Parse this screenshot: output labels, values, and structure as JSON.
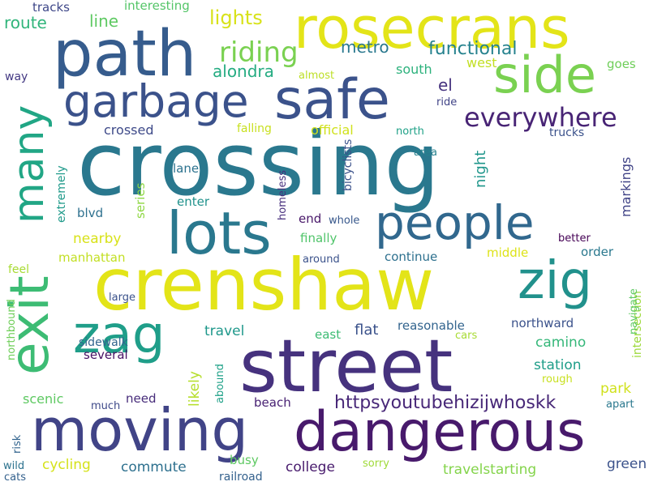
{
  "words": [
    {
      "text": "crossing",
      "color": "#2a788e"
    },
    {
      "text": "street",
      "color": "#46327e"
    },
    {
      "text": "crenshaw",
      "color": "#e3e418"
    },
    {
      "text": "rosecrans",
      "color": "#e3e418"
    },
    {
      "text": "path",
      "color": "#365c8d"
    },
    {
      "text": "safe",
      "color": "#3b528b"
    },
    {
      "text": "side",
      "color": "#7ad151"
    },
    {
      "text": "garbage",
      "color": "#3b528b"
    },
    {
      "text": "moving",
      "color": "#414487"
    },
    {
      "text": "dangerous",
      "color": "#481a6c"
    },
    {
      "text": "lots",
      "color": "#2a788e"
    },
    {
      "text": "people",
      "color": "#31688e"
    },
    {
      "text": "zig",
      "color": "#21918c"
    },
    {
      "text": "zag",
      "color": "#1f9e89"
    },
    {
      "text": "exit",
      "color": "#3dbc74"
    },
    {
      "text": "many",
      "color": "#21a685"
    },
    {
      "text": "everywhere",
      "color": "#482475"
    },
    {
      "text": "riding",
      "color": "#7ad151"
    },
    {
      "text": "httpsyoutubehizijwhoskk",
      "color": "#482878"
    },
    {
      "text": "lights",
      "color": "#d8e219"
    },
    {
      "text": "functional",
      "color": "#26828e"
    },
    {
      "text": "metro",
      "color": "#2a788e"
    },
    {
      "text": "alondra",
      "color": "#25ac82"
    },
    {
      "text": "route",
      "color": "#31b57b"
    },
    {
      "text": "line",
      "color": "#5ec962"
    },
    {
      "text": "tracks",
      "color": "#3f4889"
    },
    {
      "text": "interesting",
      "color": "#54c568"
    },
    {
      "text": "south",
      "color": "#2db27d"
    },
    {
      "text": "west",
      "color": "#c2df23"
    },
    {
      "text": "goes",
      "color": "#6ece58"
    },
    {
      "text": "way",
      "color": "#443983"
    },
    {
      "text": "almost",
      "color": "#bddf26"
    },
    {
      "text": "el",
      "color": "#46337f"
    },
    {
      "text": "ride",
      "color": "#414487"
    },
    {
      "text": "crossed",
      "color": "#3e4a89"
    },
    {
      "text": "falling",
      "color": "#c8e020"
    },
    {
      "text": "official",
      "color": "#d0e11c"
    },
    {
      "text": "north",
      "color": "#1fa187"
    },
    {
      "text": "trucks",
      "color": "#3b528b"
    },
    {
      "text": "night",
      "color": "#1f968b"
    },
    {
      "text": "markings",
      "color": "#414487"
    },
    {
      "text": "area",
      "color": "#26828e"
    },
    {
      "text": "bicyclists",
      "color": "#3b528b"
    },
    {
      "text": "homeless",
      "color": "#472f7d"
    },
    {
      "text": "extremely",
      "color": "#1f9a8a"
    },
    {
      "text": "series",
      "color": "#8fd744"
    },
    {
      "text": "lane",
      "color": "#2c728e"
    },
    {
      "text": "enter",
      "color": "#20928c"
    },
    {
      "text": "blvd",
      "color": "#2d708e"
    },
    {
      "text": "end",
      "color": "#481769"
    },
    {
      "text": "whole",
      "color": "#38588c"
    },
    {
      "text": "intersection",
      "color": "#9dd93b"
    },
    {
      "text": "nearby",
      "color": "#d8e219"
    },
    {
      "text": "finally",
      "color": "#50c46a"
    },
    {
      "text": "better",
      "color": "#440154"
    },
    {
      "text": "manhattan",
      "color": "#c2df23"
    },
    {
      "text": "continue",
      "color": "#2d708e"
    },
    {
      "text": "middle",
      "color": "#dde318"
    },
    {
      "text": "order",
      "color": "#2a788e"
    },
    {
      "text": "feel",
      "color": "#a8db34"
    },
    {
      "text": "around",
      "color": "#3b528b"
    },
    {
      "text": "navigate",
      "color": "#5ec962"
    },
    {
      "text": "northbound",
      "color": "#6ece58"
    },
    {
      "text": "large",
      "color": "#3b528b"
    },
    {
      "text": "northward",
      "color": "#3b528b"
    },
    {
      "text": "travel",
      "color": "#1f988b"
    },
    {
      "text": "flat",
      "color": "#3b528b"
    },
    {
      "text": "reasonable",
      "color": "#32648e"
    },
    {
      "text": "east",
      "color": "#3dbc74"
    },
    {
      "text": "cars",
      "color": "#a8db34"
    },
    {
      "text": "camino",
      "color": "#35b779"
    },
    {
      "text": "sidewalk",
      "color": "#32648e"
    },
    {
      "text": "several",
      "color": "#471164"
    },
    {
      "text": "likely",
      "color": "#b5de2b"
    },
    {
      "text": "station",
      "color": "#1f9e89"
    },
    {
      "text": "rough",
      "color": "#c8e020"
    },
    {
      "text": "park",
      "color": "#d0e11c"
    },
    {
      "text": "scenic",
      "color": "#5ec962"
    },
    {
      "text": "abound",
      "color": "#1fa188"
    },
    {
      "text": "need",
      "color": "#472c7a"
    },
    {
      "text": "beach",
      "color": "#482173"
    },
    {
      "text": "apart",
      "color": "#2a788e"
    },
    {
      "text": "much",
      "color": "#3e4989"
    },
    {
      "text": "risk",
      "color": "#32648e"
    },
    {
      "text": "busy",
      "color": "#5ec962"
    },
    {
      "text": "college",
      "color": "#481b6d"
    },
    {
      "text": "green",
      "color": "#3b528b"
    },
    {
      "text": "cycling",
      "color": "#d5e21a"
    },
    {
      "text": "commute",
      "color": "#2d708e"
    },
    {
      "text": "travelstarting",
      "color": "#84d44b"
    },
    {
      "text": "sorry",
      "color": "#a0da39"
    },
    {
      "text": "wild",
      "color": "#2c728e"
    },
    {
      "text": "cats",
      "color": "#34618d"
    },
    {
      "text": "railroad",
      "color": "#34618d"
    }
  ]
}
